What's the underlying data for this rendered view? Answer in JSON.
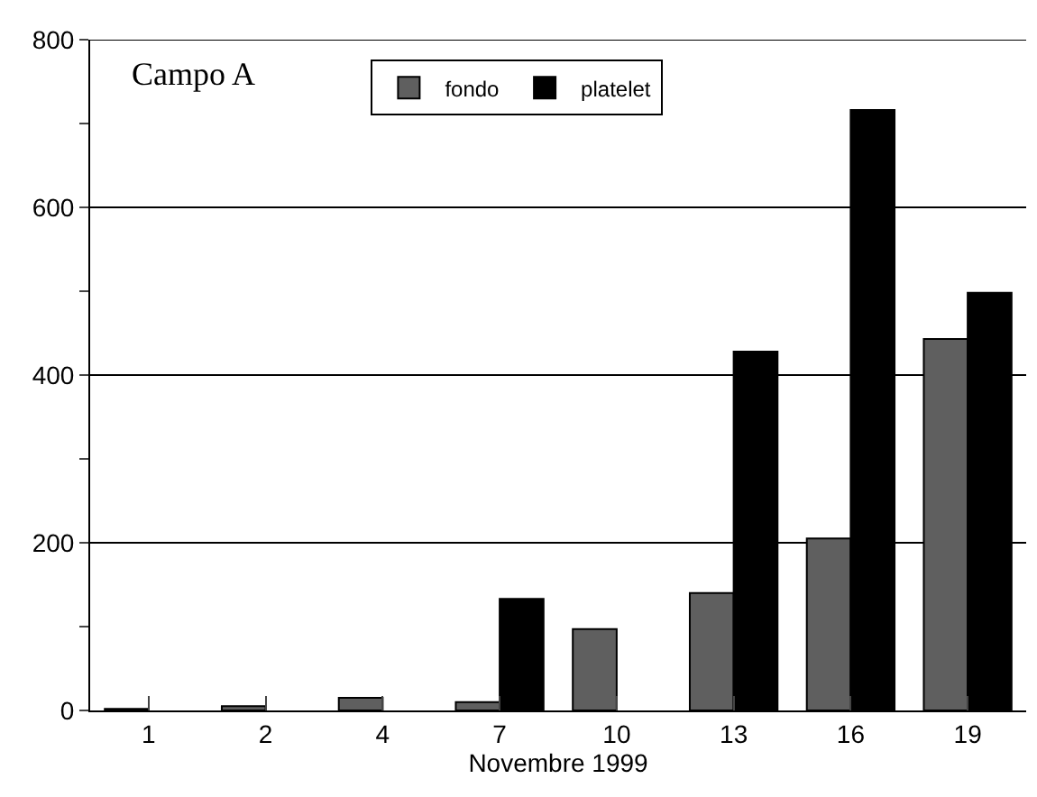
{
  "chart_data": {
    "type": "bar",
    "xlabel": "Novembre 1999",
    "categories": [
      "1",
      "2",
      "4",
      "7",
      "10",
      "13",
      "16",
      "19"
    ],
    "series": [
      {
        "name": "fondo",
        "color": "#5f5f5f",
        "values": [
          2,
          5,
          15,
          10,
          97,
          140,
          205,
          443
        ]
      },
      {
        "name": "platelet",
        "color": "#000000",
        "values": [
          null,
          null,
          null,
          133,
          null,
          428,
          716,
          498
        ]
      }
    ],
    "ylim": [
      0,
      800
    ],
    "yticks": [
      0,
      {
        "value": 100,
        "label": null
      },
      200,
      {
        "value": 300,
        "label": null
      },
      400,
      {
        "value": 500,
        "label": null
      },
      600,
      {
        "value": 700,
        "label": null
      },
      800
    ],
    "grid": "y",
    "legend": "top",
    "annotations": [
      "Campo A"
    ]
  }
}
